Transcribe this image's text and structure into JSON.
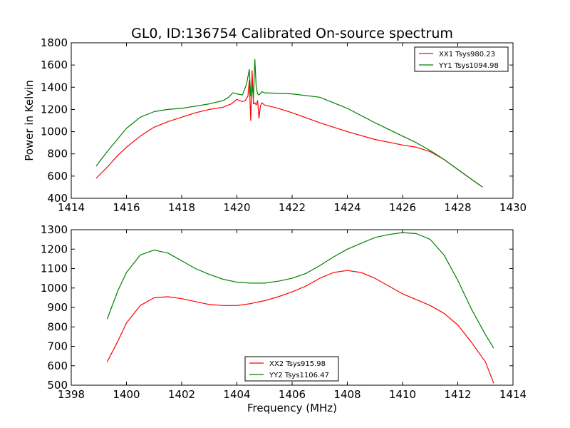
{
  "chart_data": [
    {
      "type": "line",
      "title": "GL0, ID:136754 Calibrated On-source spectrum",
      "xlabel": "",
      "ylabel": "Power in Kelvin",
      "xlim": [
        1414,
        1430
      ],
      "ylim": [
        400,
        1800
      ],
      "xticks": [
        1414,
        1416,
        1418,
        1420,
        1422,
        1424,
        1426,
        1428,
        1430
      ],
      "yticks": [
        400,
        600,
        800,
        1000,
        1200,
        1400,
        1600,
        1800
      ],
      "legend_position": "top-right",
      "series": [
        {
          "name": "XX1 Tsys980.23",
          "color": "#ff0000",
          "x": [
            1414.9,
            1415.3,
            1415.7,
            1416.0,
            1416.5,
            1417.0,
            1417.5,
            1418.0,
            1418.5,
            1419.0,
            1419.5,
            1419.8,
            1420.0,
            1420.2,
            1420.3,
            1420.4,
            1420.45,
            1420.5,
            1420.55,
            1420.6,
            1420.65,
            1420.7,
            1420.75,
            1420.8,
            1420.85,
            1420.9,
            1421.0,
            1421.5,
            1422.0,
            1423.0,
            1424.0,
            1425.0,
            1426.0,
            1426.5,
            1427.0,
            1427.5,
            1428.0,
            1428.5,
            1428.9
          ],
          "y": [
            580,
            680,
            790,
            860,
            960,
            1040,
            1090,
            1130,
            1170,
            1200,
            1220,
            1250,
            1290,
            1270,
            1280,
            1320,
            1460,
            1100,
            1550,
            1250,
            1260,
            1240,
            1280,
            1120,
            1230,
            1260,
            1240,
            1210,
            1170,
            1080,
            1000,
            930,
            880,
            860,
            820,
            750,
            660,
            570,
            500
          ]
        },
        {
          "name": "YY1 Tsys1094.98",
          "color": "#008000",
          "x": [
            1414.9,
            1415.3,
            1415.7,
            1416.0,
            1416.5,
            1417.0,
            1417.5,
            1418.0,
            1418.5,
            1419.0,
            1419.5,
            1419.7,
            1419.85,
            1420.0,
            1420.2,
            1420.35,
            1420.45,
            1420.5,
            1420.55,
            1420.6,
            1420.65,
            1420.7,
            1420.75,
            1420.8,
            1420.9,
            1421.0,
            1422.0,
            1423.0,
            1424.0,
            1425.0,
            1426.0,
            1426.5,
            1427.0,
            1427.5,
            1428.0,
            1428.5,
            1428.9
          ],
          "y": [
            690,
            820,
            940,
            1030,
            1130,
            1180,
            1200,
            1210,
            1230,
            1250,
            1280,
            1310,
            1350,
            1340,
            1330,
            1430,
            1560,
            1320,
            1420,
            1300,
            1650,
            1400,
            1340,
            1330,
            1360,
            1350,
            1340,
            1310,
            1210,
            1080,
            960,
            900,
            830,
            750,
            660,
            570,
            500
          ]
        }
      ]
    },
    {
      "type": "line",
      "title": "",
      "xlabel": "Frequency (MHz)",
      "ylabel": "",
      "xlim": [
        1398,
        1414
      ],
      "ylim": [
        500,
        1300
      ],
      "xticks": [
        1398,
        1400,
        1402,
        1404,
        1406,
        1408,
        1410,
        1412,
        1414
      ],
      "yticks": [
        500,
        600,
        700,
        800,
        900,
        1000,
        1100,
        1200,
        1300
      ],
      "legend_position": "bottom-center",
      "series": [
        {
          "name": "XX2 Tsys915.98",
          "color": "#ff0000",
          "x": [
            1399.3,
            1399.7,
            1400.0,
            1400.5,
            1401.0,
            1401.5,
            1402.0,
            1402.5,
            1403.0,
            1403.5,
            1404.0,
            1404.5,
            1405.0,
            1405.5,
            1406.0,
            1406.5,
            1407.0,
            1407.5,
            1408.0,
            1408.5,
            1409.0,
            1409.5,
            1410.0,
            1410.5,
            1411.0,
            1411.5,
            1412.0,
            1412.5,
            1413.0,
            1413.3
          ],
          "y": [
            620,
            730,
            820,
            910,
            950,
            955,
            945,
            930,
            915,
            910,
            910,
            920,
            935,
            955,
            980,
            1010,
            1050,
            1080,
            1090,
            1080,
            1050,
            1010,
            970,
            940,
            910,
            870,
            810,
            720,
            620,
            510
          ]
        },
        {
          "name": "YY2 Tsys1106.47",
          "color": "#008000",
          "x": [
            1399.3,
            1399.7,
            1400.0,
            1400.5,
            1401.0,
            1401.5,
            1402.0,
            1402.5,
            1403.0,
            1403.5,
            1404.0,
            1404.5,
            1405.0,
            1405.5,
            1406.0,
            1406.5,
            1407.0,
            1407.5,
            1408.0,
            1408.5,
            1409.0,
            1409.5,
            1410.0,
            1410.5,
            1411.0,
            1411.5,
            1412.0,
            1412.5,
            1413.0,
            1413.3
          ],
          "y": [
            840,
            990,
            1080,
            1170,
            1195,
            1180,
            1140,
            1100,
            1070,
            1045,
            1030,
            1025,
            1025,
            1035,
            1050,
            1075,
            1115,
            1160,
            1200,
            1230,
            1260,
            1275,
            1285,
            1280,
            1250,
            1170,
            1040,
            890,
            760,
            690
          ]
        }
      ]
    }
  ]
}
